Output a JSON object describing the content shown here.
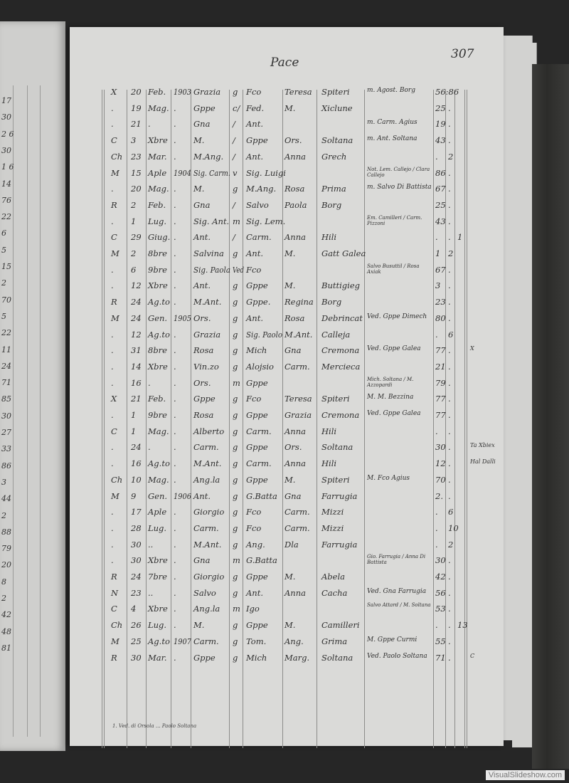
{
  "header": {
    "title": "Pace",
    "page_number": "307"
  },
  "rows": [
    [
      "X",
      "20",
      "Feb.",
      "1903",
      "Grazia",
      "g",
      "Fco",
      "Teresa",
      "Spiteri",
      "m. Agost. Borg",
      "56:86",
      "",
      "",
      ""
    ],
    [
      ".",
      "19",
      "Mag.",
      ".",
      "Gppe",
      "c/",
      "Fed.",
      "M.",
      "Xiclune",
      "",
      "25",
      ".",
      "",
      ""
    ],
    [
      ".",
      "21",
      ".",
      ".",
      "Gna",
      "/",
      "Ant.",
      "",
      "",
      "m. Carm. Agius",
      "19",
      ".",
      "",
      ""
    ],
    [
      "C",
      "3",
      "Xbre",
      ".",
      "M.",
      "/",
      "Gppe",
      "Ors.",
      "Soltana",
      "m. Ant. Soltana",
      "43",
      ".",
      "",
      ""
    ],
    [
      "Ch",
      "23",
      "Mar.",
      ".",
      "M.Ang.",
      "/",
      "Ant.",
      "Anna",
      "Grech",
      "",
      ".",
      "2",
      "",
      ""
    ],
    [
      "M",
      "15",
      "Aple",
      "1904",
      "Sig. Carm.",
      "v",
      "Sig. Luigi",
      "",
      "",
      "Not. Lem. Callejo / Clara Callejo",
      "86",
      ".",
      "",
      ""
    ],
    [
      ".",
      "20",
      "Mag.",
      ".",
      "M.",
      "g",
      "M.Ang.",
      "Rosa",
      "Prima",
      "m. Salvo Di Battista",
      "67",
      ".",
      "",
      ""
    ],
    [
      "R",
      "2",
      "Feb.",
      ".",
      "Gna",
      "/",
      "Salvo",
      "Paola",
      "Borg",
      "",
      "25",
      ".",
      "",
      ""
    ],
    [
      ".",
      "1",
      "Lug.",
      ".",
      "Sig. Ant.",
      "m",
      "Sig. Lem.",
      "",
      "",
      "Em. Camilleri / Carm. Pizzoni",
      "43",
      ".",
      "",
      ""
    ],
    [
      "C",
      "29",
      "Giug.",
      ".",
      "Ant.",
      "/",
      "Carm.",
      "Anna",
      "Hili",
      "",
      ".",
      ".",
      "1",
      ""
    ],
    [
      "M",
      "2",
      "8bre",
      ".",
      "Salvina",
      "g",
      "Ant.",
      "M.",
      "Gatt Galea",
      "",
      "1",
      "2",
      "",
      ""
    ],
    [
      ".",
      "6",
      "9bre",
      ".",
      "Sig. Paola",
      "Ved",
      "Fco",
      "",
      "",
      "Salvo Busuttil / Rosa Axiak",
      "67",
      ".",
      "",
      ""
    ],
    [
      ".",
      "12",
      "Xbre",
      ".",
      "Ant.",
      "g",
      "Gppe",
      "M.",
      "Buttigieg",
      "",
      "3",
      ".",
      "",
      ""
    ],
    [
      "R",
      "24",
      "Ag.to",
      ".",
      "M.Ant.",
      "g",
      "Gppe.",
      "Regina",
      "Borg",
      "",
      "23",
      ".",
      "",
      ""
    ],
    [
      "M",
      "24",
      "Gen.",
      "1905",
      "Ors.",
      "g",
      "Ant.",
      "Rosa",
      "Debrincat",
      "Ved. Gppe Dimech",
      "80",
      ".",
      "",
      ""
    ],
    [
      ".",
      "12",
      "Ag.to",
      ".",
      "Grazia",
      "g",
      "Sig. Paolo",
      "M.Ant.",
      "Calleja",
      "",
      ".",
      "6",
      "",
      ""
    ],
    [
      ".",
      "31",
      "8bre",
      ".",
      "Rosa",
      "g",
      "Mich",
      "Gna",
      "Cremona",
      "Ved. Gppe Galea",
      "77",
      ".",
      "",
      "X"
    ],
    [
      ".",
      "14",
      "Xbre",
      ".",
      "Vin.zo",
      "g",
      "Alojsio",
      "Carm.",
      "Mercieca",
      "",
      "21",
      ".",
      "",
      ""
    ],
    [
      ".",
      "16",
      ".",
      ".",
      "Ors.",
      "m",
      "Gppe",
      "",
      "",
      "Mich. Soltana / M. Azzopardi",
      "79",
      ".",
      "",
      ""
    ],
    [
      "X",
      "21",
      "Feb.",
      ".",
      "Gppe",
      "g",
      "Fco",
      "Teresa",
      "Spiteri",
      "M. M. Bezzina",
      "77",
      ".",
      "",
      ""
    ],
    [
      ".",
      "1",
      "9bre",
      ".",
      "Rosa",
      "g",
      "Gppe",
      "Grazia",
      "Cremona",
      "Ved. Gppe Galea",
      "77",
      ".",
      "",
      ""
    ],
    [
      "C",
      "1",
      "Mag.",
      ".",
      "Alberto",
      "g",
      "Carm.",
      "Anna",
      "Hili",
      "",
      ".",
      ".",
      "",
      ""
    ],
    [
      ".",
      "24",
      ".",
      ".",
      "Carm.",
      "g",
      "Gppe",
      "Ors.",
      "Soltana",
      "",
      "30",
      ".",
      "",
      "Ta Xbiex"
    ],
    [
      ".",
      "16",
      "Ag.to",
      ".",
      "M.Ant.",
      "g",
      "Carm.",
      "Anna",
      "Hili",
      "",
      "12",
      ".",
      "",
      "Hal Dalli"
    ],
    [
      "Ch",
      "10",
      "Mag.",
      ".",
      "Ang.la",
      "g",
      "Gppe",
      "M.",
      "Spiteri",
      "M. Fco Agius",
      "70",
      ".",
      "",
      ""
    ],
    [
      "M",
      "9",
      "Gen.",
      "1906",
      "Ant.",
      "g",
      "G.Batta",
      "Gna",
      "Farrugia",
      "",
      "2.",
      ".",
      "",
      ""
    ],
    [
      ".",
      "17",
      "Aple",
      ".",
      "Giorgio",
      "g",
      "Fco",
      "Carm.",
      "Mizzi",
      "",
      ".",
      "6",
      "",
      ""
    ],
    [
      ".",
      "28",
      "Lug.",
      ".",
      "Carm.",
      "g",
      "Fco",
      "Carm.",
      "Mizzi",
      "",
      ".",
      "10",
      "",
      ""
    ],
    [
      ".",
      "30",
      "..",
      ".",
      "M.Ant.",
      "g",
      "Ang.",
      "Dla",
      "Farrugia",
      "",
      ".",
      "2",
      "",
      ""
    ],
    [
      ".",
      "30",
      "Xbre",
      ".",
      "Gna",
      "m",
      "G.Batta",
      "",
      "",
      "Gio. Farrugia / Anna Di Battista",
      "30",
      ".",
      "",
      ""
    ],
    [
      "R",
      "24",
      "7bre",
      ".",
      "Giorgio",
      "g",
      "Gppe",
      "M.",
      "Abela",
      "",
      "42",
      ".",
      "",
      ""
    ],
    [
      "N",
      "23",
      "..",
      ".",
      "Salvo",
      "g",
      "Ant.",
      "Anna",
      "Cacha",
      "Ved. Gna Farrugia",
      "56",
      ".",
      "",
      ""
    ],
    [
      "C",
      "4",
      "Xbre",
      ".",
      "Ang.la",
      "m",
      "Igo",
      "",
      "",
      "Salvo Attard / M. Soltana",
      "53",
      ".",
      "",
      ""
    ],
    [
      "Ch",
      "26",
      "Lug.",
      ".",
      "M.",
      "g",
      "Gppe",
      "M.",
      "Camilleri",
      "",
      ".",
      ".",
      "13",
      ""
    ],
    [
      "M",
      "25",
      "Ag.to",
      "1907",
      "Carm.",
      "g",
      "Tom.",
      "Ang.",
      "Grima",
      "M. Gppe Curmi",
      "55",
      ".",
      "",
      ""
    ],
    [
      "R",
      "30",
      "Mar.",
      ".",
      "Gppe",
      "g",
      "Mich",
      "Marg.",
      "Soltana",
      "Ved. Paolo Soltana",
      "71",
      ".",
      "",
      "C"
    ]
  ],
  "footnote": "1. Ved. di Orsola ... Paolo Soltana",
  "left_page_numbers": [
    "17",
    "30",
    "2  6",
    "30",
    "1  6",
    "14",
    "76",
    "22",
    "6",
    "5",
    "15",
    "2",
    "70",
    "5",
    "22",
    "11",
    "24",
    "71",
    "85",
    "30",
    "27",
    "33",
    "86",
    "3",
    "44",
    "2",
    "88",
    "79",
    "20",
    "8",
    "2",
    "42",
    "48",
    "81"
  ],
  "watermark": "VisualSlideshow.com"
}
